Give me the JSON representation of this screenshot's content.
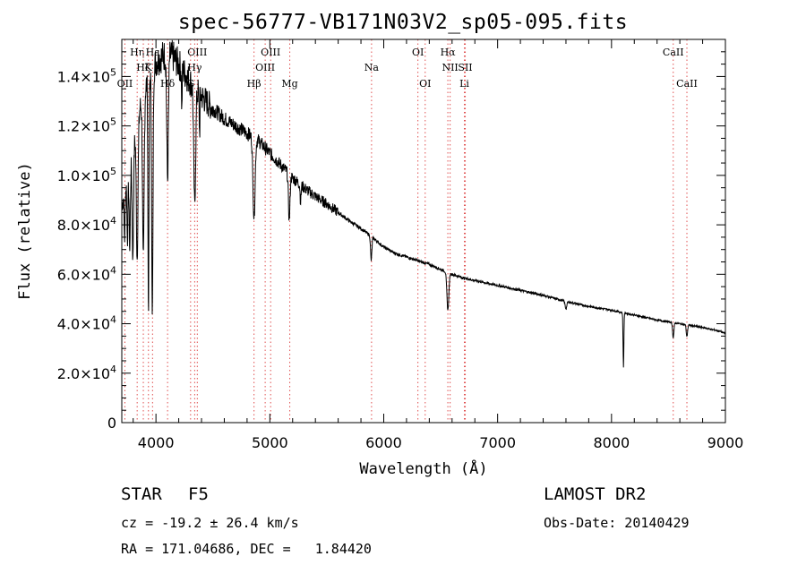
{
  "title": "spec-56777-VB171N03V2_sp05-095.fits",
  "info": {
    "class": "STAR",
    "subclass": "F5",
    "survey": "LAMOST DR2",
    "cz": "cz = -19.2 ± 26.4 km/s",
    "obs_date": "Obs-Date: 20140429",
    "radec": "RA = 171.04686, DEC =   1.84420"
  },
  "chart_data": {
    "type": "line",
    "xlabel": "Wavelength (Å)",
    "ylabel": "Flux (relative)",
    "xlim": [
      3700,
      9000
    ],
    "ylim": [
      0,
      155000
    ],
    "x_ticks": [
      4000,
      5000,
      6000,
      7000,
      8000,
      9000
    ],
    "y_ticks": [
      {
        "value": 0,
        "label": "0"
      },
      {
        "value": 20000,
        "label": "2.0×10",
        "exp": "4"
      },
      {
        "value": 40000,
        "label": "4.0×10",
        "exp": "4"
      },
      {
        "value": 60000,
        "label": "6.0×10",
        "exp": "4"
      },
      {
        "value": 80000,
        "label": "8.0×10",
        "exp": "4"
      },
      {
        "value": 100000,
        "label": "1.0×10",
        "exp": "5"
      },
      {
        "value": 120000,
        "label": "1.2×10",
        "exp": "5"
      },
      {
        "value": 140000,
        "label": "1.4×10",
        "exp": "5"
      }
    ],
    "continuum": [
      [
        3700,
        88000
      ],
      [
        3750,
        98000
      ],
      [
        3800,
        110000
      ],
      [
        3850,
        125000
      ],
      [
        3900,
        135000
      ],
      [
        3950,
        140000
      ],
      [
        4000,
        146000
      ],
      [
        4050,
        148000
      ],
      [
        4100,
        149000
      ],
      [
        4150,
        148000
      ],
      [
        4200,
        145000
      ],
      [
        4300,
        138000
      ],
      [
        4400,
        132000
      ],
      [
        4500,
        127000
      ],
      [
        4600,
        123000
      ],
      [
        4700,
        120000
      ],
      [
        4800,
        117000
      ],
      [
        4900,
        114000
      ],
      [
        5000,
        109000
      ],
      [
        5100,
        104000
      ],
      [
        5200,
        99000
      ],
      [
        5300,
        95000
      ],
      [
        5400,
        91500
      ],
      [
        5500,
        88500
      ],
      [
        5600,
        85000
      ],
      [
        5700,
        81500
      ],
      [
        5800,
        78500
      ],
      [
        5900,
        75000
      ],
      [
        6000,
        71000
      ],
      [
        6100,
        68500
      ],
      [
        6200,
        67000
      ],
      [
        6300,
        65500
      ],
      [
        6400,
        64000
      ],
      [
        6500,
        62000
      ],
      [
        6600,
        60000
      ],
      [
        6700,
        58500
      ],
      [
        6800,
        57500
      ],
      [
        6900,
        56500
      ],
      [
        7000,
        55500
      ],
      [
        7200,
        53500
      ],
      [
        7400,
        51500
      ],
      [
        7600,
        49000
      ],
      [
        7800,
        47000
      ],
      [
        8000,
        45500
      ],
      [
        8200,
        43500
      ],
      [
        8400,
        41500
      ],
      [
        8600,
        40000
      ],
      [
        8800,
        38500
      ],
      [
        8950,
        37000
      ],
      [
        9000,
        36000
      ]
    ],
    "absorption": [
      [
        3725,
        6,
        0.8
      ],
      [
        3750,
        6,
        0.75
      ],
      [
        3770,
        7,
        0.68
      ],
      [
        3797,
        8,
        0.6
      ],
      [
        3835,
        10,
        0.55
      ],
      [
        3889,
        10,
        0.5
      ],
      [
        3934,
        6,
        0.32
      ],
      [
        3968,
        8,
        0.3
      ],
      [
        4102,
        10,
        0.66
      ],
      [
        4227,
        4,
        0.88
      ],
      [
        4340,
        12,
        0.65
      ],
      [
        4383,
        5,
        0.88
      ],
      [
        4861,
        13,
        0.72
      ],
      [
        5170,
        10,
        0.82
      ],
      [
        5270,
        6,
        0.93
      ],
      [
        5890,
        8,
        0.87
      ],
      [
        6563,
        12,
        0.75
      ],
      [
        7600,
        10,
        0.94
      ],
      [
        8105,
        5,
        0.5
      ],
      [
        8542,
        8,
        0.85
      ],
      [
        8662,
        8,
        0.88
      ]
    ],
    "lines": [
      {
        "label": "Hη",
        "wl": 3835,
        "row": 1
      },
      {
        "label": "Hζ",
        "wl": 3889,
        "row": 2
      },
      {
        "label": "OII",
        "wl": 3727,
        "row": 3
      },
      {
        "label": "K",
        "wl": 3934,
        "row": 2
      },
      {
        "label": "Hε",
        "wl": 3970,
        "row": 1
      },
      {
        "label": "Hδ",
        "wl": 4102,
        "row": 3
      },
      {
        "label": "OIII",
        "wl": 4363,
        "row": 1
      },
      {
        "label": "Hγ",
        "wl": 4340,
        "row": 2
      },
      {
        "label": "G",
        "wl": 4304,
        "row": 3
      },
      {
        "label": "Hβ",
        "wl": 4861,
        "row": 3
      },
      {
        "label": "OIII",
        "wl": 5007,
        "row": 1
      },
      {
        "label": "OIII",
        "wl": 4959,
        "row": 2
      },
      {
        "label": "Mg",
        "wl": 5175,
        "row": 3
      },
      {
        "label": "Na",
        "wl": 5893,
        "row": 2
      },
      {
        "label": "OI",
        "wl": 6300,
        "row": 1
      },
      {
        "label": "OI",
        "wl": 6364,
        "row": 3
      },
      {
        "label": "Hα",
        "wl": 6563,
        "row": 1
      },
      {
        "label": "NII",
        "wl": 6583,
        "row": 2
      },
      {
        "label": "SII",
        "wl": 6716,
        "row": 2
      },
      {
        "label": "Li",
        "wl": 6708,
        "row": 3
      },
      {
        "label": "CaII",
        "wl": 8542,
        "row": 1
      },
      {
        "label": "CaII",
        "wl": 8662,
        "row": 3
      }
    ]
  }
}
